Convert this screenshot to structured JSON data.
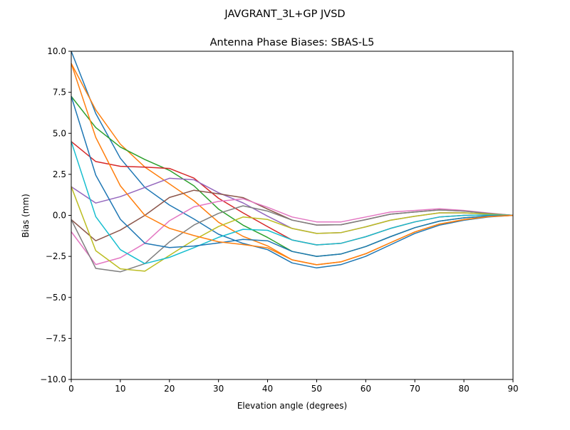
{
  "chart_data": {
    "type": "line",
    "suptitle": "JAVGRANT_3L+GP  JVSD",
    "title": "Antenna Phase Biases: SBAS-L5",
    "xlabel": "Elevation angle (degrees)",
    "ylabel": "Bias (mm)",
    "xlim": [
      0,
      90
    ],
    "ylim": [
      -10,
      10
    ],
    "xticks": [
      0,
      10,
      20,
      30,
      40,
      50,
      60,
      70,
      80,
      90
    ],
    "yticks": [
      -10.0,
      -7.5,
      -5.0,
      -2.5,
      0.0,
      2.5,
      5.0,
      7.5,
      10.0
    ],
    "ytick_labels": [
      "−10.0",
      "−7.5",
      "−5.0",
      "−2.5",
      "0.0",
      "2.5",
      "5.0",
      "7.5",
      "10.0"
    ],
    "xtick_labels": [
      "0",
      "10",
      "20",
      "30",
      "40",
      "50",
      "60",
      "70",
      "80",
      "90"
    ],
    "grid": false,
    "legend": "none",
    "colors": [
      "#1f77b4",
      "#ff7f0e",
      "#2ca02c",
      "#d62728",
      "#9467bd",
      "#8c564b",
      "#e377c2",
      "#7f7f7f",
      "#bcbd22",
      "#17becf"
    ],
    "x": [
      0,
      5,
      10,
      15,
      20,
      25,
      30,
      35,
      40,
      45,
      50,
      55,
      60,
      65,
      70,
      75,
      80,
      85,
      90
    ],
    "series": [
      {
        "values": [
          10.0,
          6.21,
          3.48,
          1.7,
          0.63,
          -0.22,
          -1.15,
          -1.71,
          -2.09,
          -2.9,
          -3.2,
          -3.0,
          -2.5,
          -1.8,
          -1.1,
          -0.6,
          -0.3,
          -0.1,
          0
        ]
      },
      {
        "values": [
          9.26,
          6.43,
          4.34,
          2.94,
          1.92,
          0.89,
          -0.42,
          -1.28,
          -1.86,
          -2.71,
          -3.01,
          -2.83,
          -2.34,
          -1.67,
          -1.01,
          -0.53,
          -0.26,
          -0.08,
          0
        ]
      },
      {
        "values": [
          7.25,
          5.35,
          4.16,
          3.4,
          2.74,
          1.8,
          0.38,
          -0.6,
          -1.35,
          -2.2,
          -2.5,
          -2.35,
          -1.9,
          -1.3,
          -0.75,
          -0.35,
          -0.15,
          -0.04,
          0
        ]
      },
      {
        "values": [
          4.5,
          3.28,
          2.99,
          2.94,
          2.86,
          2.27,
          1.04,
          0.15,
          -0.69,
          -1.5,
          -1.8,
          -1.7,
          -1.3,
          -0.8,
          -0.4,
          -0.1,
          0,
          0.02,
          0
        ]
      },
      {
        "values": [
          1.75,
          0.75,
          1.14,
          1.7,
          2.26,
          2.17,
          1.38,
          0.76,
          -0.05,
          -0.8,
          -1.1,
          -1.05,
          -0.7,
          -0.3,
          -0.05,
          0.15,
          0.15,
          0.08,
          0
        ]
      },
      {
        "values": [
          -0.26,
          -1.55,
          -0.9,
          0,
          1.09,
          1.53,
          1.31,
          1.08,
          0.38,
          -0.29,
          -0.59,
          -0.57,
          -0.26,
          0.07,
          0.21,
          0.33,
          0.26,
          0.12,
          0
        ]
      },
      {
        "values": [
          -1.0,
          -3.0,
          -2.58,
          -1.7,
          -0.33,
          0.52,
          0.85,
          1.01,
          0.49,
          -0.1,
          -0.4,
          -0.4,
          -0.1,
          0.2,
          0.3,
          0.4,
          0.3,
          0.14,
          0
        ]
      },
      {
        "values": [
          -0.26,
          -3.23,
          -3.44,
          -2.94,
          -1.62,
          -0.59,
          0.12,
          0.58,
          0.26,
          -0.29,
          -0.59,
          -0.57,
          -0.26,
          0.07,
          0.21,
          0.33,
          0.26,
          0.12,
          0
        ]
      },
      {
        "values": [
          1.75,
          -2.15,
          -3.26,
          -3.4,
          -2.44,
          -1.5,
          -0.68,
          -0.1,
          -0.25,
          -0.8,
          -1.1,
          -1.05,
          -0.7,
          -0.3,
          -0.05,
          0.15,
          0.15,
          0.08,
          0
        ]
      },
      {
        "values": [
          4.5,
          -0.08,
          -2.09,
          -2.94,
          -2.56,
          -1.97,
          -1.34,
          -0.85,
          -0.91,
          -1.5,
          -1.8,
          -1.7,
          -1.3,
          -0.8,
          -0.4,
          -0.1,
          0,
          0.02,
          0
        ]
      },
      {
        "values": [
          7.25,
          2.45,
          -0.24,
          -1.7,
          -1.96,
          -1.87,
          -1.68,
          -1.46,
          -1.55,
          -2.2,
          -2.5,
          -2.35,
          -1.9,
          -1.3,
          -0.75,
          -0.35,
          -0.15,
          -0.04,
          0
        ]
      },
      {
        "values": [
          9.26,
          4.75,
          1.8,
          0,
          -0.79,
          -1.23,
          -1.61,
          -1.78,
          -1.98,
          -2.71,
          -3.01,
          -2.83,
          -2.34,
          -1.67,
          -1.01,
          -0.53,
          -0.26,
          -0.08,
          0
        ]
      }
    ]
  }
}
